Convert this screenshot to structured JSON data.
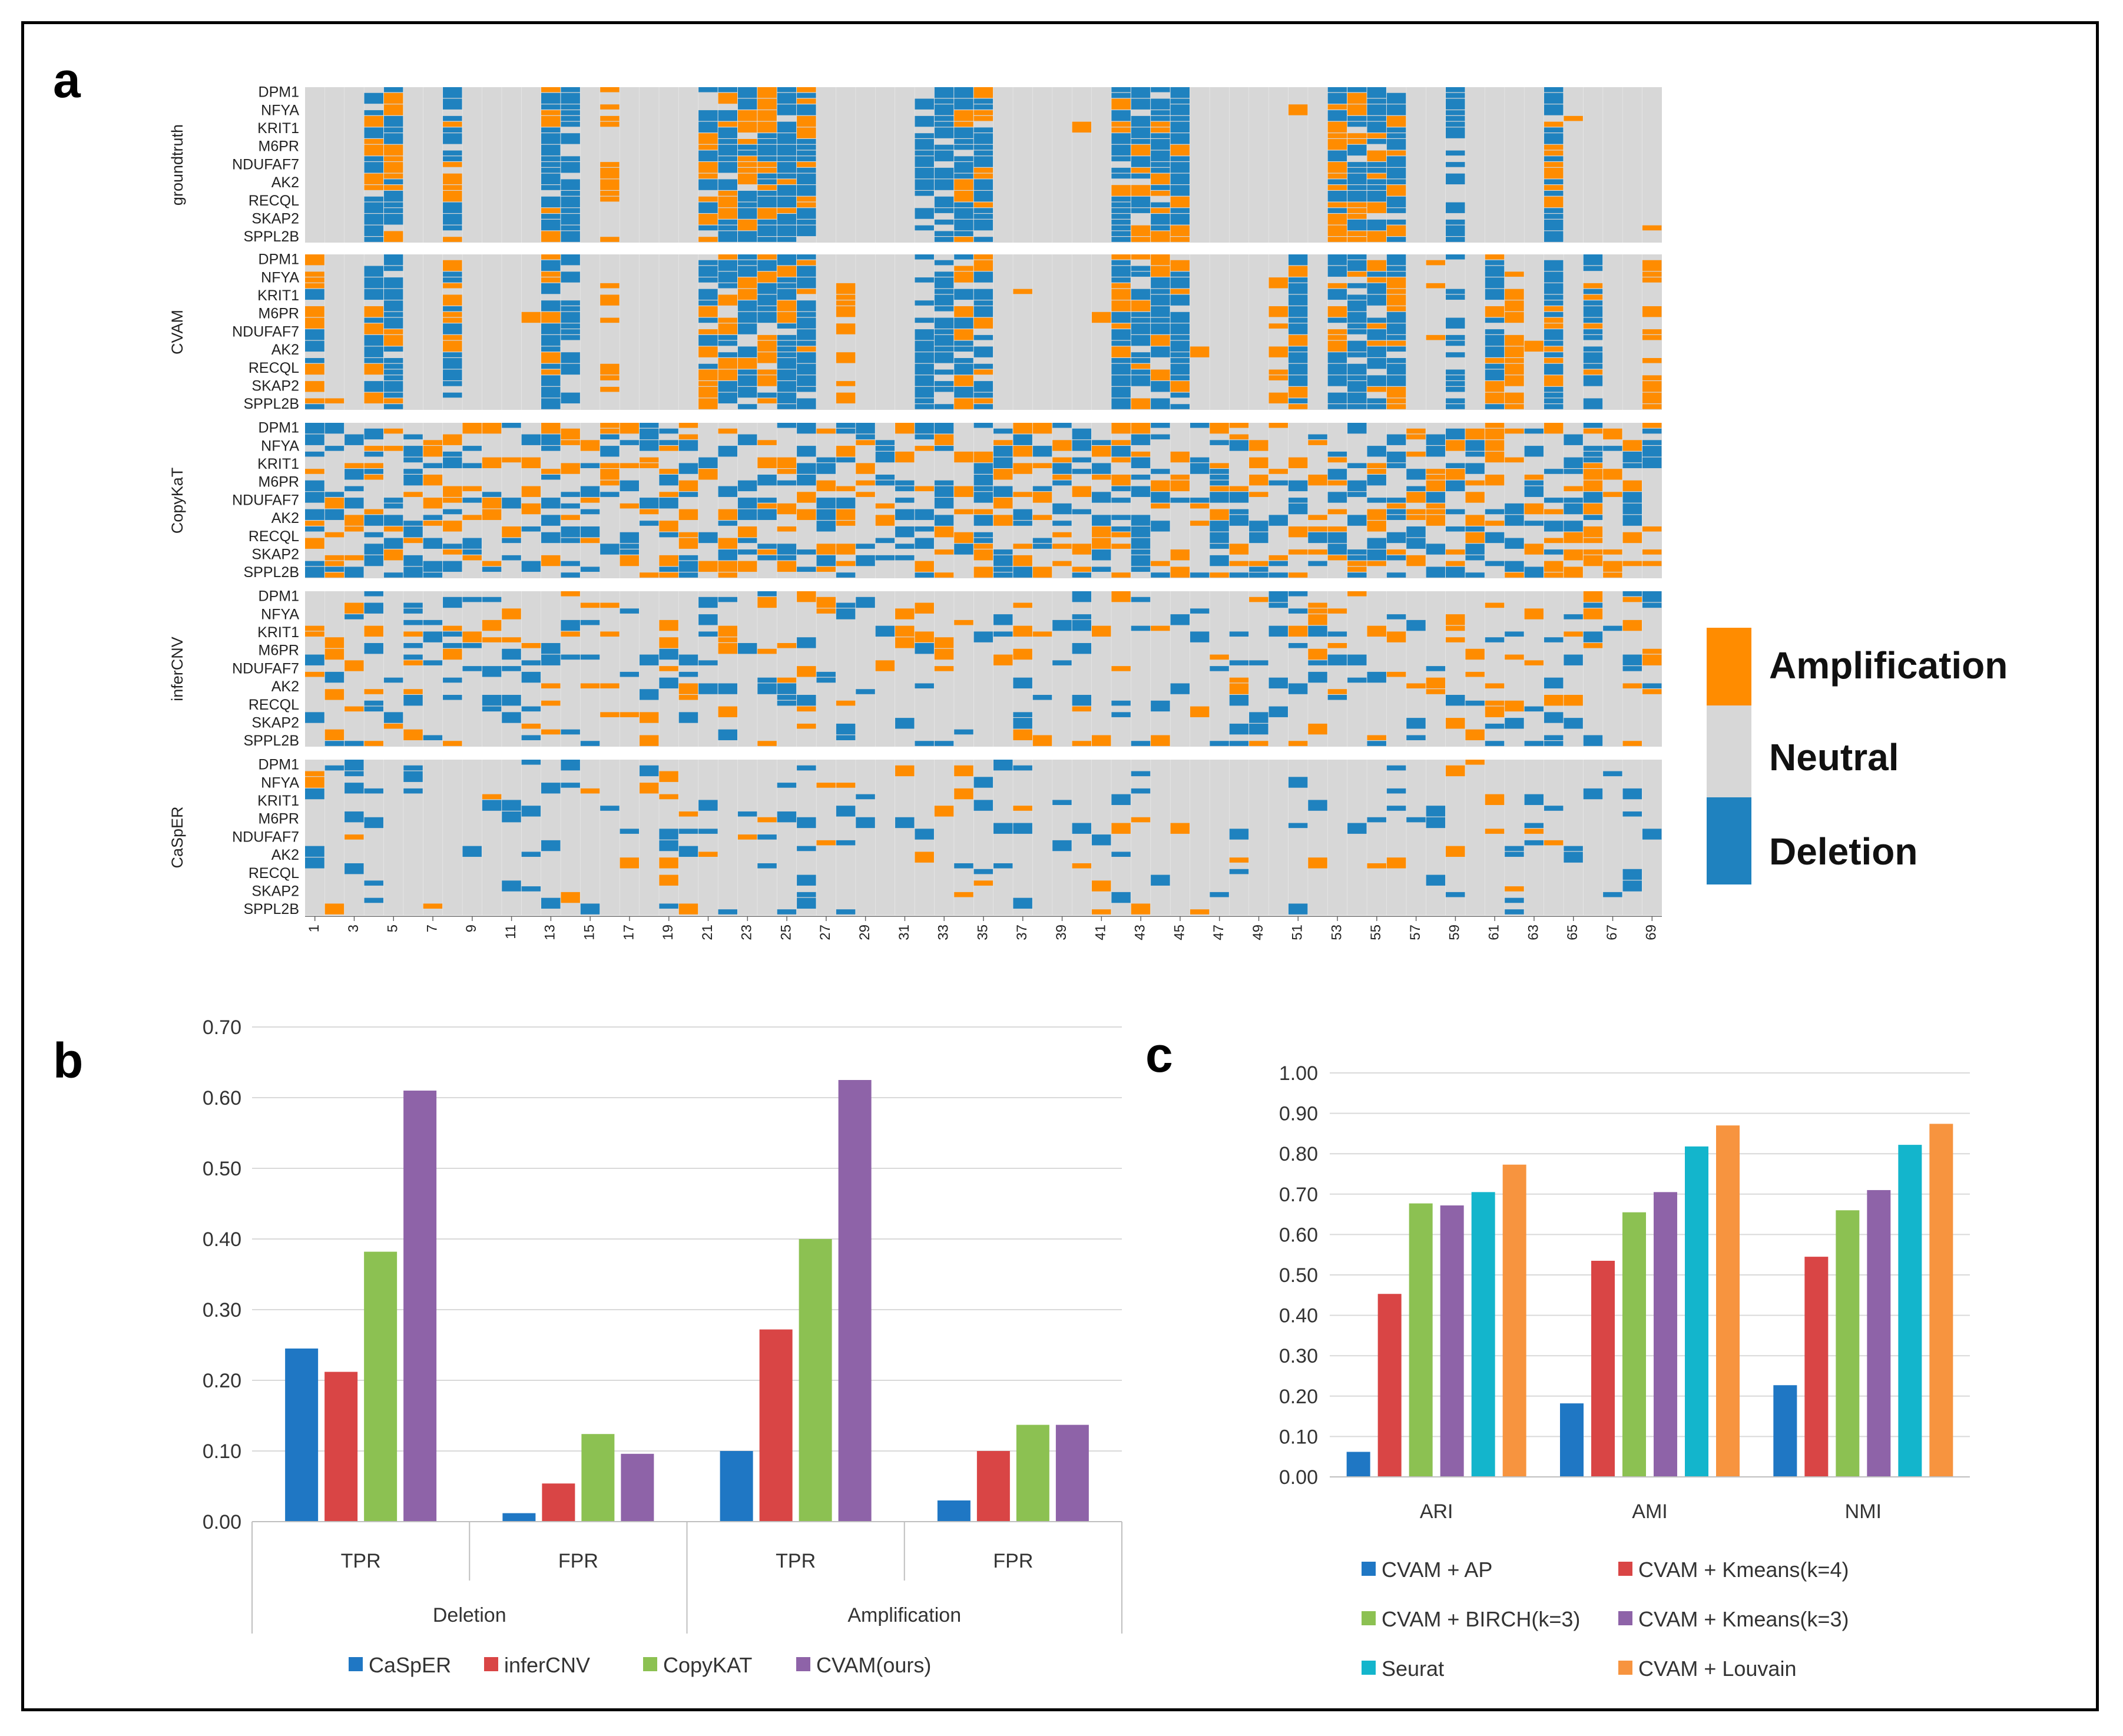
{
  "panel_labels": {
    "a": "a",
    "b": "b",
    "c": "c"
  },
  "colors": {
    "amplification": "#ff8c00",
    "neutral": "#d7d7d7",
    "deletion": "#1f82bf"
  },
  "chart_data": [
    {
      "type": "heatmap",
      "panel": "a",
      "methods": [
        "groundtruth",
        "CVAM",
        "CopyKaT",
        "inferCNV",
        "CaSpER"
      ],
      "gene_labels": [
        "DPM1",
        "NFYA",
        "KRIT1",
        "M6PR",
        "NDUFAF7",
        "AK2",
        "RECQL",
        "SKAP2",
        "SPPL2B"
      ],
      "x_ticks": [
        "1",
        "3",
        "5",
        "7",
        "9",
        "11",
        "13",
        "15",
        "17",
        "19",
        "21",
        "23",
        "25",
        "27",
        "29",
        "31",
        "33",
        "35",
        "37",
        "39",
        "41",
        "43",
        "45",
        "47",
        "49",
        "51",
        "53",
        "55",
        "57",
        "59",
        "61",
        "63",
        "65",
        "67",
        "69"
      ],
      "n_columns": 69,
      "states": [
        "Amplification",
        "Neutral",
        "Deletion"
      ],
      "legend": {
        "amplification": "Amplification",
        "neutral": "Neutral",
        "deletion": "Deletion"
      }
    },
    {
      "type": "bar",
      "panel": "b",
      "groups": [
        "Deletion",
        "Amplification"
      ],
      "categories": [
        "TPR",
        "FPR",
        "TPR",
        "FPR"
      ],
      "series": [
        {
          "name": "CaSpER",
          "color": "#1f77c4",
          "values": [
            0.245,
            0.012,
            0.1,
            0.03
          ]
        },
        {
          "name": "inferCNV",
          "color": "#d94545",
          "values": [
            0.212,
            0.054,
            0.272,
            0.1
          ]
        },
        {
          "name": "CopyKAT",
          "color": "#8cc152",
          "values": [
            0.382,
            0.124,
            0.4,
            0.137
          ]
        },
        {
          "name": "CVAM(ours)",
          "color": "#8e63a8",
          "values": [
            0.61,
            0.096,
            0.625,
            0.137
          ]
        }
      ],
      "ylim": [
        0,
        0.7
      ],
      "y_ticks": [
        "0.00",
        "0.10",
        "0.20",
        "0.30",
        "0.40",
        "0.50",
        "0.60",
        "0.70"
      ]
    },
    {
      "type": "bar",
      "panel": "c",
      "categories": [
        "ARI",
        "AMI",
        "NMI"
      ],
      "series": [
        {
          "name": "CVAM + AP",
          "color": "#1f77c4",
          "values": [
            0.062,
            0.182,
            0.227
          ]
        },
        {
          "name": "CVAM + Kmeans(k=4)",
          "color": "#d94545",
          "values": [
            0.453,
            0.535,
            0.545
          ]
        },
        {
          "name": "CVAM + BIRCH(k=3)",
          "color": "#8cc152",
          "values": [
            0.677,
            0.655,
            0.66
          ]
        },
        {
          "name": "CVAM + Kmeans(k=3)",
          "color": "#8e63a8",
          "values": [
            0.672,
            0.705,
            0.71
          ]
        },
        {
          "name": "Seurat",
          "color": "#13b5cc",
          "values": [
            0.705,
            0.818,
            0.822
          ]
        },
        {
          "name": "CVAM + Louvain",
          "color": "#f7943f",
          "values": [
            0.773,
            0.87,
            0.874
          ]
        }
      ],
      "ylim": [
        0,
        1.0
      ],
      "y_ticks": [
        "0.00",
        "0.10",
        "0.20",
        "0.30",
        "0.40",
        "0.50",
        "0.60",
        "0.70",
        "0.80",
        "0.90",
        "1.00"
      ]
    }
  ]
}
